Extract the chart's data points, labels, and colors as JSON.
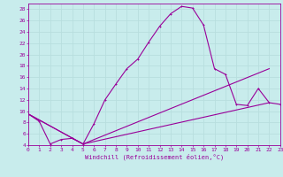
{
  "xlabel": "Windchill (Refroidissement éolien,°C)",
  "bg_color": "#c8ecec",
  "line_color": "#990099",
  "grid_color": "#b8dede",
  "xmin": 0,
  "xmax": 23,
  "ymin": 4,
  "ymax": 29,
  "yticks": [
    4,
    6,
    8,
    10,
    12,
    14,
    16,
    18,
    20,
    22,
    24,
    26,
    28
  ],
  "xticks": [
    0,
    1,
    2,
    3,
    4,
    5,
    6,
    7,
    8,
    9,
    10,
    11,
    12,
    13,
    14,
    15,
    16,
    17,
    18,
    19,
    20,
    21,
    22,
    23
  ],
  "line1_x": [
    0,
    1,
    2,
    3,
    4,
    5,
    6,
    7,
    8,
    9,
    10,
    11,
    12,
    13,
    14,
    15,
    16,
    17,
    18,
    19,
    20,
    21,
    22,
    23
  ],
  "line1_y": [
    9.5,
    8.2,
    4.2,
    5.0,
    5.2,
    4.2,
    7.8,
    12.0,
    14.8,
    17.5,
    19.2,
    22.2,
    25.0,
    27.2,
    28.5,
    28.2,
    25.2,
    17.5,
    16.5,
    11.2,
    11.0,
    14.0,
    11.5,
    11.2
  ],
  "line2_x": [
    0,
    5,
    22
  ],
  "line2_y": [
    9.5,
    4.2,
    11.5
  ],
  "line3_x": [
    0,
    5,
    22
  ],
  "line3_y": [
    9.5,
    4.2,
    17.5
  ]
}
